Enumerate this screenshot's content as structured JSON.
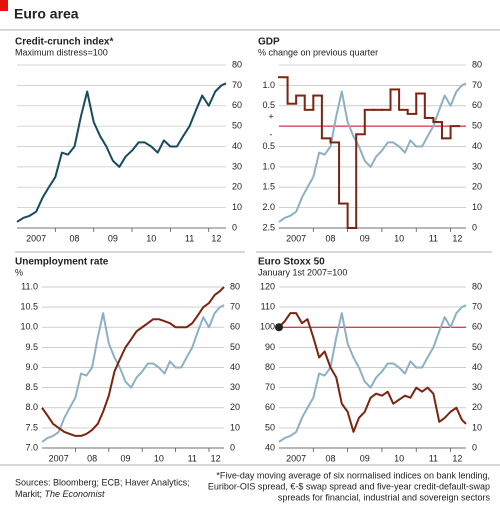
{
  "header": {
    "title": "Euro area"
  },
  "chart_data": [
    {
      "type": "line",
      "title": "Credit-crunch index*",
      "subtitle": "Maximum distress=100",
      "x": [
        2007,
        2007.17,
        2007.33,
        2007.5,
        2007.67,
        2007.83,
        2008,
        2008.17,
        2008.33,
        2008.5,
        2008.67,
        2008.83,
        2009,
        2009.17,
        2009.33,
        2009.5,
        2009.67,
        2009.83,
        2010,
        2010.17,
        2010.33,
        2010.5,
        2010.67,
        2010.83,
        2011,
        2011.17,
        2011.33,
        2011.5,
        2011.67,
        2011.83,
        2012,
        2012.17,
        2012.33,
        2012.45
      ],
      "xlim": [
        2007,
        2012.45
      ],
      "xticks": [
        {
          "value": 2007.5,
          "label": "2007"
        },
        {
          "value": 2008.5,
          "label": "08"
        },
        {
          "value": 2009.5,
          "label": "09"
        },
        {
          "value": 2010.5,
          "label": "10"
        },
        {
          "value": 2011.5,
          "label": "11"
        },
        {
          "value": 2012.2,
          "label": "12"
        }
      ],
      "ylim": [
        0,
        80
      ],
      "yticks": [
        0,
        10,
        20,
        30,
        40,
        50,
        60,
        70,
        80
      ],
      "y_axis_side": "right",
      "grid": true,
      "series": [
        {
          "color": "#174c5e",
          "values": [
            3,
            5,
            6,
            8,
            15,
            20,
            25,
            37,
            36,
            40,
            55,
            67,
            52,
            45,
            40,
            33,
            30,
            35,
            38,
            42,
            42,
            40,
            37,
            43,
            40,
            40,
            45,
            50,
            58,
            65,
            60,
            67,
            70,
            71
          ]
        }
      ]
    },
    {
      "type": "line",
      "title": "GDP",
      "subtitle": "% change on previous quarter",
      "x": [
        2007,
        2007.17,
        2007.33,
        2007.5,
        2007.67,
        2007.83,
        2008,
        2008.17,
        2008.33,
        2008.5,
        2008.67,
        2008.83,
        2009,
        2009.17,
        2009.33,
        2009.5,
        2009.67,
        2009.83,
        2010,
        2010.17,
        2010.33,
        2010.5,
        2010.67,
        2010.83,
        2011,
        2011.17,
        2011.33,
        2011.5,
        2011.67,
        2011.83,
        2012,
        2012.17,
        2012.33,
        2012.45
      ],
      "xlim": [
        2007,
        2012.45
      ],
      "xticks": [
        {
          "value": 2007.5,
          "label": "2007"
        },
        {
          "value": 2008.5,
          "label": "08"
        },
        {
          "value": 2009.5,
          "label": "09"
        },
        {
          "value": 2010.5,
          "label": "10"
        },
        {
          "value": 2011.5,
          "label": "11"
        },
        {
          "value": 2012.2,
          "label": "12"
        }
      ],
      "ylim": [
        -2.5,
        1.5
      ],
      "yticks": [
        {
          "value": 1,
          "label": "1.0"
        },
        0.5,
        {
          "value": -0.5,
          "label": "0.5"
        },
        {
          "value": -1,
          "label": "1.0"
        },
        {
          "value": -1.5,
          "label": "1.5"
        },
        {
          "value": -2,
          "label": "2.0"
        },
        {
          "value": -2.5,
          "label": "2.5"
        }
      ],
      "y2lim": [
        0,
        80
      ],
      "y2ticks": [
        0,
        10,
        20,
        30,
        40,
        50,
        60,
        70,
        80
      ],
      "grid": true,
      "reference_line": {
        "value": 0,
        "color": "#d0021b"
      },
      "zero_signs": [
        "+",
        "-"
      ],
      "series": [
        {
          "color": "#8eb0c3",
          "axis": "y2",
          "values": [
            3,
            5,
            6,
            8,
            15,
            20,
            25,
            37,
            36,
            40,
            55,
            67,
            52,
            45,
            40,
            33,
            30,
            35,
            38,
            42,
            42,
            40,
            37,
            43,
            40,
            40,
            45,
            50,
            58,
            65,
            60,
            67,
            70,
            71
          ]
        },
        {
          "color": "#7b2411",
          "step": true,
          "x": [
            2007,
            2007.25,
            2007.5,
            2007.75,
            2008,
            2008.25,
            2008.5,
            2008.75,
            2009,
            2009.25,
            2009.5,
            2009.75,
            2010,
            2010.25,
            2010.5,
            2010.75,
            2011,
            2011.25,
            2011.5,
            2011.75,
            2012
          ],
          "values": [
            1.2,
            0.55,
            0.75,
            0.4,
            0.75,
            -0.3,
            -0.4,
            -1.9,
            -2.5,
            -0.2,
            0.4,
            0.4,
            0.4,
            0.9,
            0.4,
            0.3,
            0.8,
            0.2,
            0.1,
            -0.3,
            0.0
          ]
        }
      ]
    },
    {
      "type": "line",
      "title": "Unemployment rate",
      "subtitle": "%",
      "x": [
        2007,
        2007.17,
        2007.33,
        2007.5,
        2007.67,
        2007.83,
        2008,
        2008.17,
        2008.33,
        2008.5,
        2008.67,
        2008.83,
        2009,
        2009.17,
        2009.33,
        2009.5,
        2009.67,
        2009.83,
        2010,
        2010.17,
        2010.33,
        2010.5,
        2010.67,
        2010.83,
        2011,
        2011.17,
        2011.33,
        2011.5,
        2011.67,
        2011.83,
        2012,
        2012.17,
        2012.33,
        2012.45
      ],
      "xlim": [
        2007,
        2012.45
      ],
      "xticks": [
        {
          "value": 2007.5,
          "label": "2007"
        },
        {
          "value": 2008.5,
          "label": "08"
        },
        {
          "value": 2009.5,
          "label": "09"
        },
        {
          "value": 2010.5,
          "label": "10"
        },
        {
          "value": 2011.5,
          "label": "11"
        },
        {
          "value": 2012.2,
          "label": "12"
        }
      ],
      "ylim": [
        7,
        11
      ],
      "yticks": [
        {
          "value": 7,
          "label": "7.0"
        },
        7.5,
        {
          "value": 8,
          "label": "8.0"
        },
        8.5,
        {
          "value": 9,
          "label": "9.0"
        },
        9.5,
        {
          "value": 10,
          "label": "10.0"
        },
        10.5,
        {
          "value": 11,
          "label": "11.0"
        }
      ],
      "y2lim": [
        0,
        80
      ],
      "y2ticks": [
        0,
        10,
        20,
        30,
        40,
        50,
        60,
        70,
        80
      ],
      "grid": true,
      "series": [
        {
          "color": "#8eb0c3",
          "axis": "y2",
          "values": [
            3,
            5,
            6,
            8,
            15,
            20,
            25,
            37,
            36,
            40,
            55,
            67,
            52,
            45,
            40,
            33,
            30,
            35,
            38,
            42,
            42,
            40,
            37,
            43,
            40,
            40,
            45,
            50,
            58,
            65,
            60,
            67,
            70,
            71
          ]
        },
        {
          "color": "#7b2411",
          "values": [
            8.0,
            7.8,
            7.6,
            7.5,
            7.4,
            7.35,
            7.3,
            7.3,
            7.35,
            7.45,
            7.6,
            7.9,
            8.3,
            8.9,
            9.2,
            9.5,
            9.7,
            9.9,
            10.0,
            10.1,
            10.2,
            10.2,
            10.15,
            10.1,
            10.0,
            10.0,
            10.0,
            10.1,
            10.3,
            10.5,
            10.6,
            10.8,
            10.9,
            11.0
          ]
        }
      ]
    },
    {
      "type": "line",
      "title": "Euro Stoxx 50",
      "subtitle": "January 1st 2007=100",
      "x": [
        2007,
        2007.17,
        2007.33,
        2007.5,
        2007.67,
        2007.83,
        2008,
        2008.17,
        2008.33,
        2008.5,
        2008.67,
        2008.83,
        2009,
        2009.17,
        2009.33,
        2009.5,
        2009.67,
        2009.83,
        2010,
        2010.17,
        2010.33,
        2010.5,
        2010.67,
        2010.83,
        2011,
        2011.17,
        2011.33,
        2011.5,
        2011.67,
        2011.83,
        2012,
        2012.17,
        2012.33,
        2012.45
      ],
      "xlim": [
        2007,
        2012.45
      ],
      "xticks": [
        {
          "value": 2007.5,
          "label": "2007"
        },
        {
          "value": 2008.5,
          "label": "08"
        },
        {
          "value": 2009.5,
          "label": "09"
        },
        {
          "value": 2010.5,
          "label": "10"
        },
        {
          "value": 2011.5,
          "label": "11"
        },
        {
          "value": 2012.2,
          "label": "12"
        }
      ],
      "ylim": [
        40,
        120
      ],
      "yticks": [
        40,
        50,
        60,
        70,
        80,
        90,
        100,
        110,
        120
      ],
      "y2lim": [
        0,
        80
      ],
      "y2ticks": [
        0,
        10,
        20,
        30,
        40,
        50,
        60,
        70,
        80
      ],
      "grid": true,
      "reference_line": {
        "value": 100,
        "color": "#d0021b"
      },
      "start_marker": true,
      "series": [
        {
          "color": "#8eb0c3",
          "axis": "y2",
          "values": [
            3,
            5,
            6,
            8,
            15,
            20,
            25,
            37,
            36,
            40,
            55,
            67,
            52,
            45,
            40,
            33,
            30,
            35,
            38,
            42,
            42,
            40,
            37,
            43,
            40,
            40,
            45,
            50,
            58,
            65,
            60,
            67,
            70,
            71
          ]
        },
        {
          "color": "#7b2411",
          "values": [
            100,
            103,
            107,
            107,
            102,
            104,
            95,
            85,
            88,
            80,
            75,
            62,
            58,
            48,
            55,
            58,
            65,
            67,
            66,
            68,
            62,
            64,
            66,
            65,
            70,
            68,
            70,
            67,
            53,
            55,
            58,
            60,
            54,
            52
          ]
        }
      ]
    }
  ],
  "footer": {
    "sources_line1": "Sources: Bloomberg; ECB; Haver Analytics;",
    "sources_line2": "Markit;",
    "sources_italic": "The Economist",
    "note": [
      "*Five-day moving average of six normalised indices on bank lending,",
      "Euribor-OIS spread, €-$ swap spread and five-year credit-default-swap",
      "spreads for financial, industrial and sovereign sectors"
    ]
  }
}
